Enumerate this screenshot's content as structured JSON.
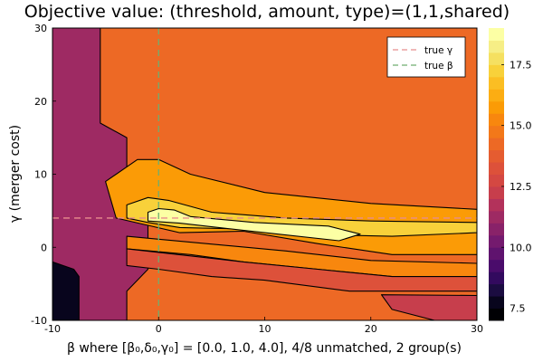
{
  "chart_data": {
    "type": "heatmap",
    "title": "Objective value: (threshold, amount, type)=(1,1,shared)",
    "xlabel": "β where [β₀,δ₀,γ₀] = [0.0, 1.0, 4.0], 4/8 unmatched, 2 group(s)",
    "ylabel": "γ (merger cost)",
    "xlim": [
      -10,
      30
    ],
    "ylim": [
      -10,
      30
    ],
    "x_ticks": [
      "-10",
      "0",
      "10",
      "20",
      "30"
    ],
    "y_ticks": [
      "-10",
      "0",
      "10",
      "20",
      "30"
    ],
    "colorbar": {
      "range": [
        7,
        19
      ],
      "ticks": [
        "7.5",
        "10.0",
        "12.5",
        "15.0",
        "17.5"
      ],
      "levels": [
        7.0,
        7.5,
        8.0,
        8.5,
        9.0,
        9.5,
        10.0,
        10.5,
        11.0,
        11.5,
        12.0,
        12.5,
        13.0,
        13.5,
        14.0,
        14.5,
        15.0,
        15.5,
        16.0,
        16.5,
        17.0,
        17.5,
        18.0,
        18.5,
        19.0
      ],
      "colors": [
        "#000004",
        "#08051d",
        "#1b0c41",
        "#320a5e",
        "#4a0c6b",
        "#5f136e",
        "#741a6e",
        "#892269",
        "#9e2a63",
        "#b3325b",
        "#c73e4c",
        "#d44842",
        "#dd513a",
        "#e55c30",
        "#ed6925",
        "#f37819",
        "#f8870e",
        "#fb9b06",
        "#fcad12",
        "#fbbe23",
        "#f8d13a",
        "#f5e061",
        "#f6ee86",
        "#fcffa4"
      ]
    },
    "background_value": 14.0,
    "region_values": [
      {
        "name": "left-dark-band",
        "value": 8.0
      },
      {
        "name": "left-purple-band",
        "value": 11.0
      },
      {
        "name": "orange-wedge",
        "value": 15.5
      },
      {
        "name": "gold-wedge",
        "value": 17.0
      },
      {
        "name": "yellow-core",
        "value": 18.5
      },
      {
        "name": "lower-orange-band",
        "value": 15.0
      },
      {
        "name": "lower-red-band",
        "value": 13.0
      },
      {
        "name": "lower-purple-band",
        "value": 12.0
      },
      {
        "name": "bottom-left-dark",
        "value": 7.5
      }
    ],
    "reference_lines": [
      {
        "name": "true γ",
        "orientation": "horizontal",
        "value": 4,
        "color": "#e88d8d"
      },
      {
        "name": "true β",
        "orientation": "vertical",
        "value": 0,
        "color": "#6fae6f"
      }
    ],
    "legend": {
      "position": "top-right",
      "entries": [
        "true γ",
        "true β"
      ]
    },
    "grid": false
  }
}
